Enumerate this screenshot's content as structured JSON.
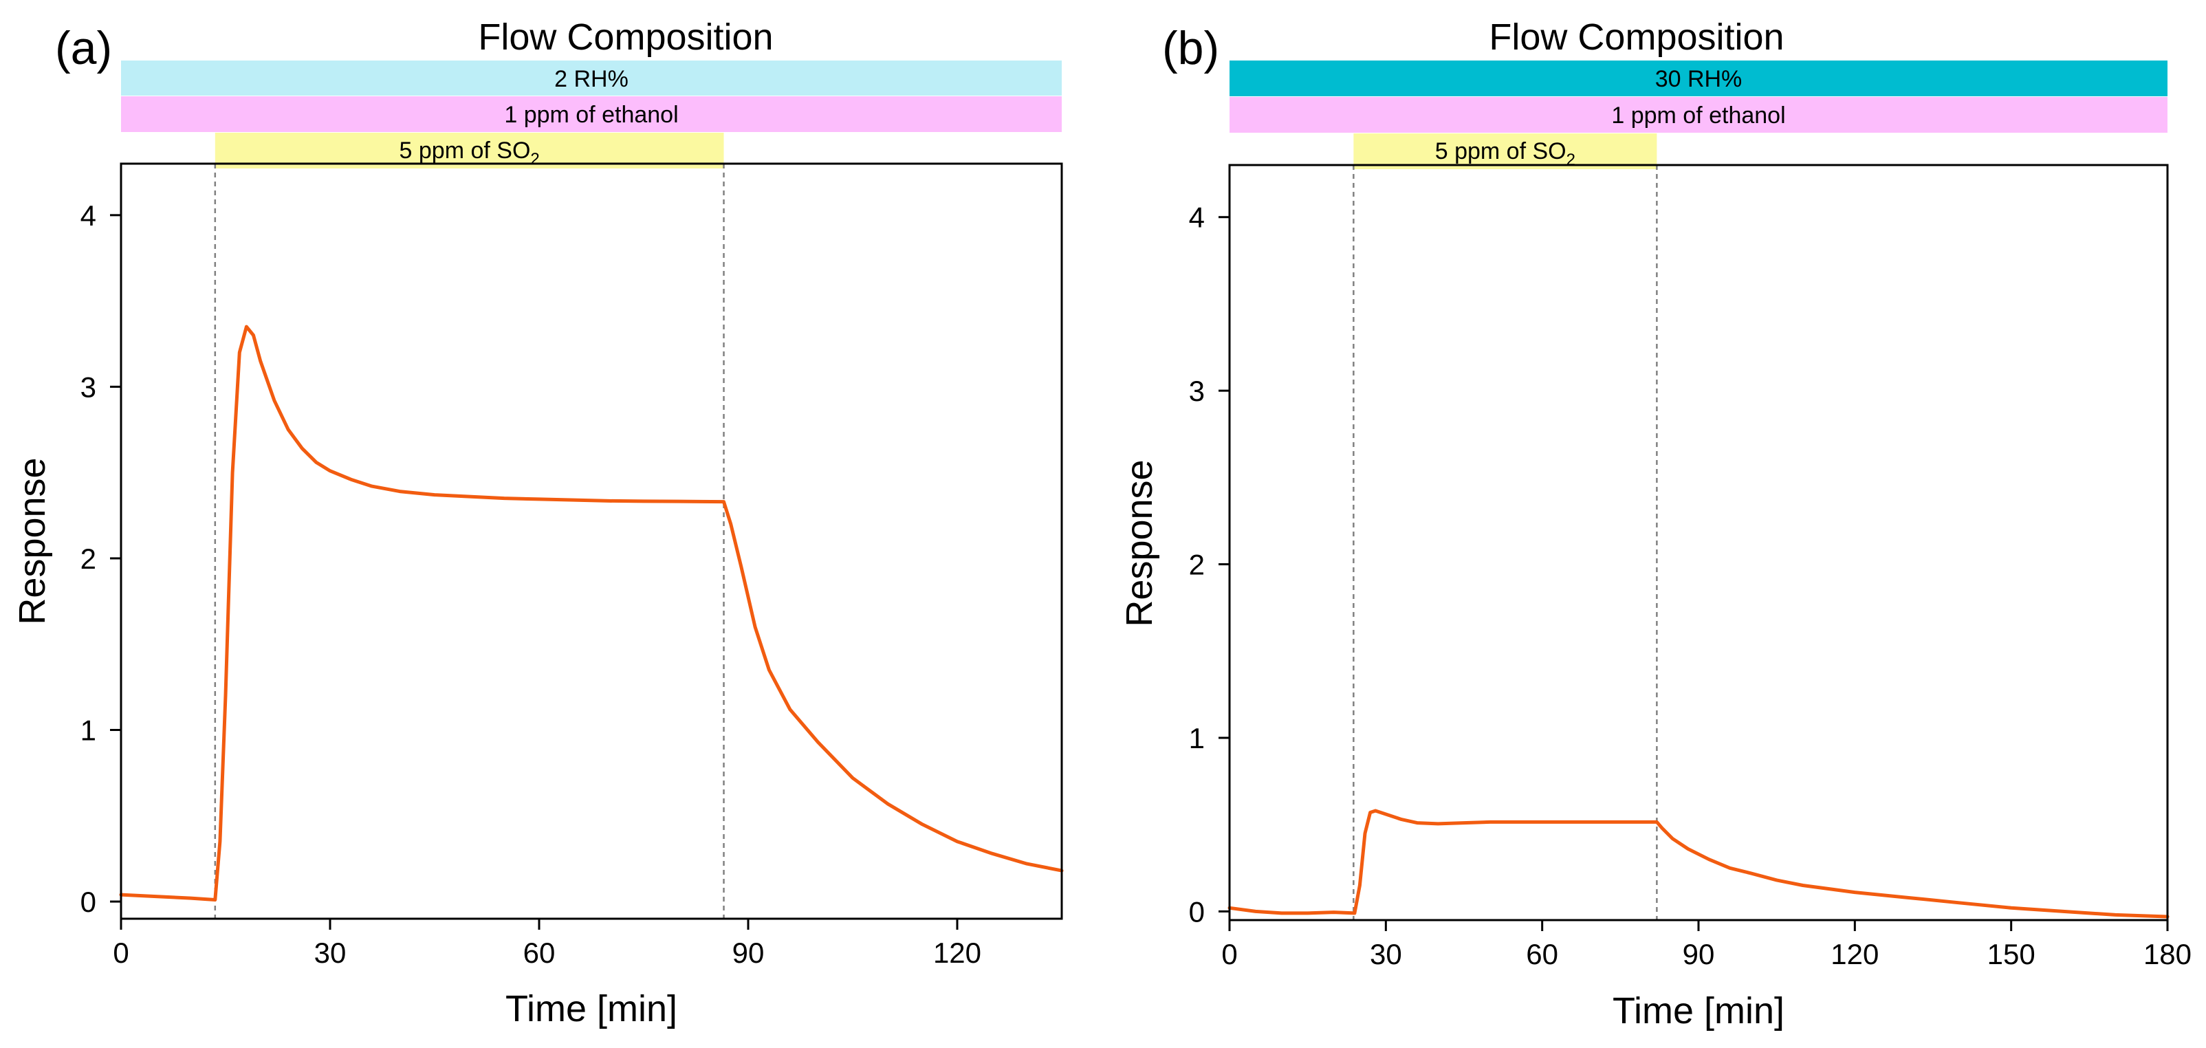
{
  "colors": {
    "curve": "#f25c10",
    "rh_low": "#bdeef7",
    "rh_high": "#00bcd0",
    "ethanol": "#fcbdfc",
    "so2": "#fbf9a0",
    "guide": "#808080",
    "axis": "#000000"
  },
  "chart_data": [
    {
      "panel": "(a)",
      "type": "line",
      "flow_title": "Flow Composition",
      "bands": [
        {
          "label": "2 RH%",
          "x_start": 0,
          "x_end": 135,
          "color_key": "rh_low"
        },
        {
          "label": "1 ppm of ethanol",
          "x_start": 0,
          "x_end": 135,
          "color_key": "ethanol"
        },
        {
          "label_prefix": "5 ppm of SO",
          "label_sub": "2",
          "x_start": 13.5,
          "x_end": 86.5,
          "color_key": "so2"
        }
      ],
      "guide_lines_x": [
        13.5,
        86.5
      ],
      "xlabel": "Time [min]",
      "ylabel": "Response",
      "xlim": [
        0,
        135
      ],
      "ylim": [
        -0.1,
        4.3
      ],
      "xticks": [
        0,
        30,
        60,
        90,
        120
      ],
      "yticks": [
        0,
        1,
        2,
        3,
        4
      ],
      "series": [
        {
          "name": "Response",
          "points": [
            [
              0,
              0.04
            ],
            [
              5,
              0.03
            ],
            [
              10,
              0.02
            ],
            [
              13.5,
              0.01
            ],
            [
              14.2,
              0.35
            ],
            [
              15,
              1.2
            ],
            [
              16,
              2.5
            ],
            [
              17,
              3.2
            ],
            [
              18,
              3.35
            ],
            [
              19,
              3.3
            ],
            [
              20,
              3.15
            ],
            [
              22,
              2.92
            ],
            [
              24,
              2.75
            ],
            [
              26,
              2.64
            ],
            [
              28,
              2.56
            ],
            [
              30,
              2.51
            ],
            [
              33,
              2.46
            ],
            [
              36,
              2.42
            ],
            [
              40,
              2.39
            ],
            [
              45,
              2.37
            ],
            [
              50,
              2.36
            ],
            [
              55,
              2.35
            ],
            [
              60,
              2.345
            ],
            [
              65,
              2.34
            ],
            [
              70,
              2.335
            ],
            [
              75,
              2.333
            ],
            [
              80,
              2.332
            ],
            [
              86.5,
              2.33
            ],
            [
              87.5,
              2.2
            ],
            [
              89,
              1.95
            ],
            [
              91,
              1.6
            ],
            [
              93,
              1.35
            ],
            [
              96,
              1.12
            ],
            [
              100,
              0.93
            ],
            [
              105,
              0.72
            ],
            [
              110,
              0.57
            ],
            [
              115,
              0.45
            ],
            [
              120,
              0.35
            ],
            [
              125,
              0.28
            ],
            [
              130,
              0.22
            ],
            [
              135,
              0.18
            ]
          ]
        }
      ]
    },
    {
      "panel": "(b)",
      "type": "line",
      "flow_title": "Flow Composition",
      "bands": [
        {
          "label": "30 RH%",
          "x_start": 0,
          "x_end": 180,
          "color_key": "rh_high"
        },
        {
          "label": "1 ppm of ethanol",
          "x_start": 0,
          "x_end": 180,
          "color_key": "ethanol"
        },
        {
          "label_prefix": "5 ppm of SO",
          "label_sub": "2",
          "x_start": 23.8,
          "x_end": 82,
          "color_key": "so2"
        }
      ],
      "guide_lines_x": [
        23.8,
        82
      ],
      "xlabel": "Time [min]",
      "ylabel": "Response",
      "xlim": [
        0,
        180
      ],
      "ylim": [
        -0.05,
        4.3
      ],
      "xticks": [
        0,
        30,
        60,
        90,
        120,
        150,
        180
      ],
      "yticks": [
        0,
        1,
        2,
        3,
        4
      ],
      "series": [
        {
          "name": "Response",
          "points": [
            [
              0,
              0.02
            ],
            [
              5,
              0.0
            ],
            [
              10,
              -0.01
            ],
            [
              15,
              -0.01
            ],
            [
              20,
              -0.005
            ],
            [
              24,
              -0.01
            ],
            [
              25,
              0.15
            ],
            [
              26,
              0.45
            ],
            [
              27,
              0.57
            ],
            [
              28,
              0.58
            ],
            [
              30,
              0.56
            ],
            [
              33,
              0.53
            ],
            [
              36,
              0.51
            ],
            [
              40,
              0.505
            ],
            [
              45,
              0.51
            ],
            [
              50,
              0.515
            ],
            [
              60,
              0.515
            ],
            [
              70,
              0.515
            ],
            [
              82,
              0.515
            ],
            [
              83,
              0.48
            ],
            [
              85,
              0.42
            ],
            [
              88,
              0.36
            ],
            [
              92,
              0.3
            ],
            [
              96,
              0.25
            ],
            [
              100,
              0.22
            ],
            [
              105,
              0.18
            ],
            [
              110,
              0.15
            ],
            [
              120,
              0.11
            ],
            [
              130,
              0.08
            ],
            [
              140,
              0.05
            ],
            [
              150,
              0.02
            ],
            [
              160,
              0.0
            ],
            [
              170,
              -0.02
            ],
            [
              180,
              -0.03
            ]
          ]
        }
      ]
    }
  ]
}
